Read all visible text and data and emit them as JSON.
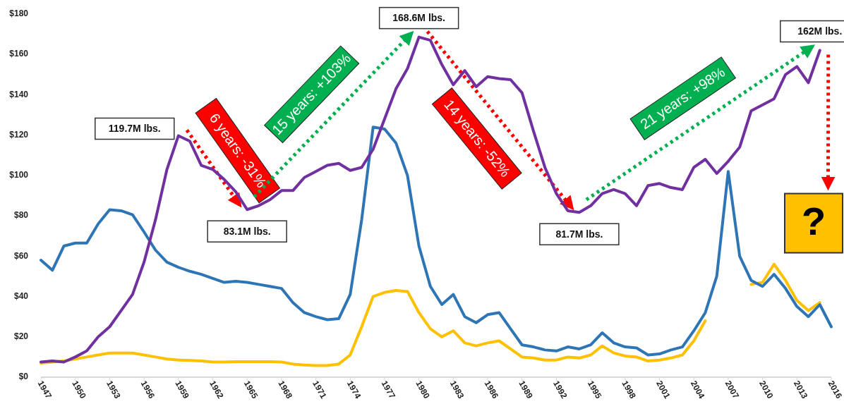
{
  "chart_data": {
    "type": "line",
    "x": [
      1947,
      1948,
      1949,
      1950,
      1951,
      1952,
      1953,
      1954,
      1955,
      1956,
      1957,
      1958,
      1959,
      1960,
      1961,
      1962,
      1963,
      1964,
      1965,
      1966,
      1967,
      1968,
      1969,
      1970,
      1971,
      1972,
      1973,
      1974,
      1975,
      1976,
      1977,
      1978,
      1979,
      1980,
      1981,
      1982,
      1983,
      1984,
      1985,
      1986,
      1987,
      1988,
      1989,
      1990,
      1991,
      1992,
      1993,
      1994,
      1995,
      1996,
      1997,
      1998,
      1999,
      2000,
      2001,
      2002,
      2003,
      2004,
      2005,
      2006,
      2007,
      2008,
      2009,
      2010,
      2011,
      2012,
      2013,
      2014,
      2015,
      2016
    ],
    "series": [
      {
        "color": "#ffc000",
        "values": [
          7,
          7.5,
          8,
          9,
          10,
          11,
          12,
          12,
          12,
          11,
          10,
          9,
          8.5,
          8.3,
          8,
          7.5,
          7.5,
          7.7,
          7.7,
          7.7,
          7.7,
          7.5,
          6.5,
          6,
          5.8,
          5.8,
          6.5,
          11,
          25,
          40,
          42,
          43,
          42.5,
          32,
          24,
          20,
          23,
          17,
          15.5,
          17,
          18,
          14,
          10,
          9.5,
          8.5,
          8.5,
          10,
          9.5,
          11,
          15.5,
          12,
          10.5,
          10,
          8,
          8.5,
          9.5,
          11,
          18,
          28,
          null,
          null,
          null,
          46,
          47,
          56,
          48,
          38,
          33,
          37,
          null
        ]
      },
      {
        "color": "#2e75b6",
        "values": [
          58,
          53,
          65,
          66.5,
          66.5,
          76,
          83,
          82.5,
          80.5,
          72,
          63,
          57,
          54.5,
          52.5,
          51,
          49,
          47,
          47.5,
          47,
          46,
          45,
          44,
          37,
          32,
          30,
          28.5,
          29,
          41,
          78,
          124,
          123,
          116,
          100,
          65,
          45,
          36,
          41,
          30,
          27,
          31,
          32,
          24,
          16,
          15,
          13.5,
          13,
          15,
          14,
          16,
          22,
          17,
          15,
          14.5,
          11,
          11.5,
          13.5,
          15,
          23,
          32,
          50,
          102,
          60,
          48,
          45,
          51,
          44,
          35,
          30,
          36,
          25
        ]
      },
      {
        "color": "#7030a0",
        "values": [
          7.5,
          8,
          7.5,
          10,
          13,
          20,
          25,
          33,
          41,
          57,
          78,
          103,
          119.7,
          117,
          105,
          103,
          98,
          92,
          83.1,
          85,
          88,
          92.5,
          92.5,
          99,
          102,
          105,
          106,
          102.5,
          104,
          113,
          128,
          143,
          153,
          168.6,
          167,
          155,
          145,
          152,
          144,
          149,
          148,
          147.5,
          141,
          122,
          104,
          91,
          82.5,
          81.7,
          85,
          91,
          93,
          91,
          85,
          95,
          96,
          94,
          93,
          104,
          108,
          101,
          107,
          114,
          132,
          135,
          138,
          150,
          154,
          146,
          162,
          null
        ]
      }
    ],
    "xlim": [
      1947,
      2016
    ],
    "xticks": [
      1947,
      1950,
      1953,
      1956,
      1959,
      1962,
      1965,
      1968,
      1971,
      1974,
      1977,
      1980,
      1983,
      1986,
      1989,
      1992,
      1995,
      1998,
      2001,
      2004,
      2007,
      2010,
      2013,
      2016
    ],
    "ylim": [
      0,
      180
    ],
    "yticks": [
      {
        "value": 0,
        "label": "$0"
      },
      {
        "value": 20,
        "label": "$20"
      },
      {
        "value": 40,
        "label": "$40"
      },
      {
        "value": 60,
        "label": "$60"
      },
      {
        "value": 80,
        "label": "$80"
      },
      {
        "value": 100,
        "label": "$100"
      },
      {
        "value": 120,
        "label": "$120"
      },
      {
        "value": 140,
        "label": "$140"
      },
      {
        "value": 160,
        "label": "$160"
      },
      {
        "value": 180,
        "label": "$180"
      }
    ],
    "grid": false,
    "annotations": [
      {
        "text": "119.7M lbs.",
        "x": 1959,
        "y": 119.7
      },
      {
        "text": "83.1M lbs.",
        "x": 1965,
        "y": 83.1
      },
      {
        "text": "168.6M lbs.",
        "x": 1980,
        "y": 168.6
      },
      {
        "text": "81.7M lbs.",
        "x": 1994,
        "y": 81.7
      },
      {
        "text": "162M lbs.",
        "x": 2015,
        "y": 162
      },
      "6 years: -31%",
      "15 years: +103%",
      "14 years: -52%",
      "21 years: +98%",
      "?"
    ]
  }
}
